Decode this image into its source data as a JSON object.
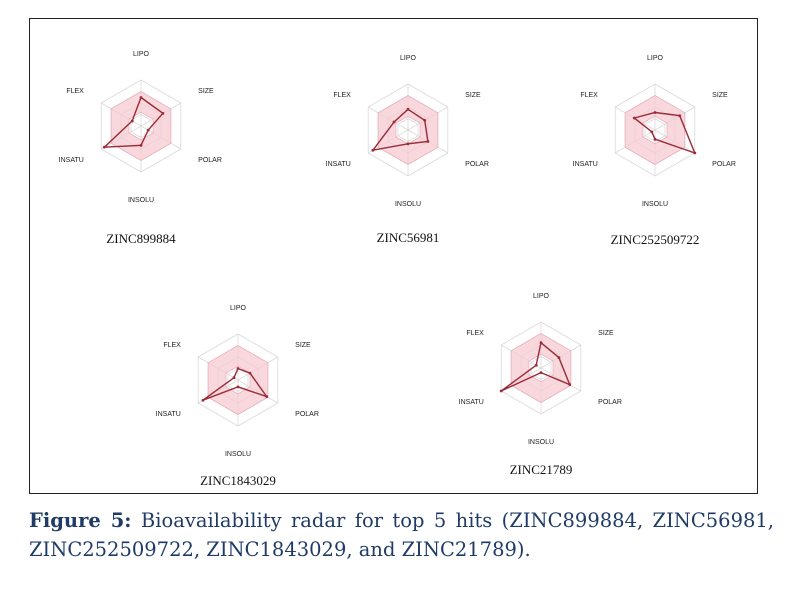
{
  "chart_data": [
    {
      "type": "radar",
      "title": "ZINC899884",
      "axes": [
        "LIPO",
        "SIZE",
        "POLAR",
        "INSOLU",
        "INSATU",
        "FLEX"
      ],
      "values": [
        0.62,
        0.55,
        0.18,
        0.42,
        0.92,
        0.22
      ],
      "ylim": [
        0,
        1
      ]
    },
    {
      "type": "radar",
      "title": "ZINC56981",
      "axes": [
        "LIPO",
        "SIZE",
        "POLAR",
        "INSOLU",
        "INSATU",
        "FLEX"
      ],
      "values": [
        0.45,
        0.42,
        0.5,
        0.3,
        0.88,
        0.35
      ],
      "ylim": [
        0,
        1
      ]
    },
    {
      "type": "radar",
      "title": "ZINC252509722",
      "axes": [
        "LIPO",
        "SIZE",
        "POLAR",
        "INSOLU",
        "INSATU",
        "FLEX"
      ],
      "values": [
        0.38,
        0.62,
        1.0,
        0.2,
        0.08,
        0.52
      ],
      "ylim": [
        0,
        1
      ]
    },
    {
      "type": "radar",
      "title": "ZINC1843029",
      "axes": [
        "LIPO",
        "SIZE",
        "POLAR",
        "INSOLU",
        "INSATU",
        "FLEX"
      ],
      "values": [
        0.25,
        0.3,
        0.72,
        0.15,
        0.88,
        0.1
      ],
      "ylim": [
        0,
        1
      ]
    },
    {
      "type": "radar",
      "title": "ZINC21789",
      "axes": [
        "LIPO",
        "SIZE",
        "POLAR",
        "INSOLU",
        "INSATU",
        "FLEX"
      ],
      "values": [
        0.55,
        0.45,
        0.72,
        0.1,
        1.0,
        0.12
      ],
      "ylim": [
        0,
        1
      ]
    }
  ],
  "style": {
    "line_color": "#9b2b36",
    "fill_color": "#f6c9d2",
    "grid_color": "#d9d9d9",
    "frame_color": "#222222",
    "caption_color": "#1f3b66"
  },
  "caption": {
    "label": "Figure 5:",
    "text": " Bioavailability radar for top 5 hits (ZINC899884, ZINC56981, ZINC252509722, ZINC1843029, and ZINC21789)."
  }
}
